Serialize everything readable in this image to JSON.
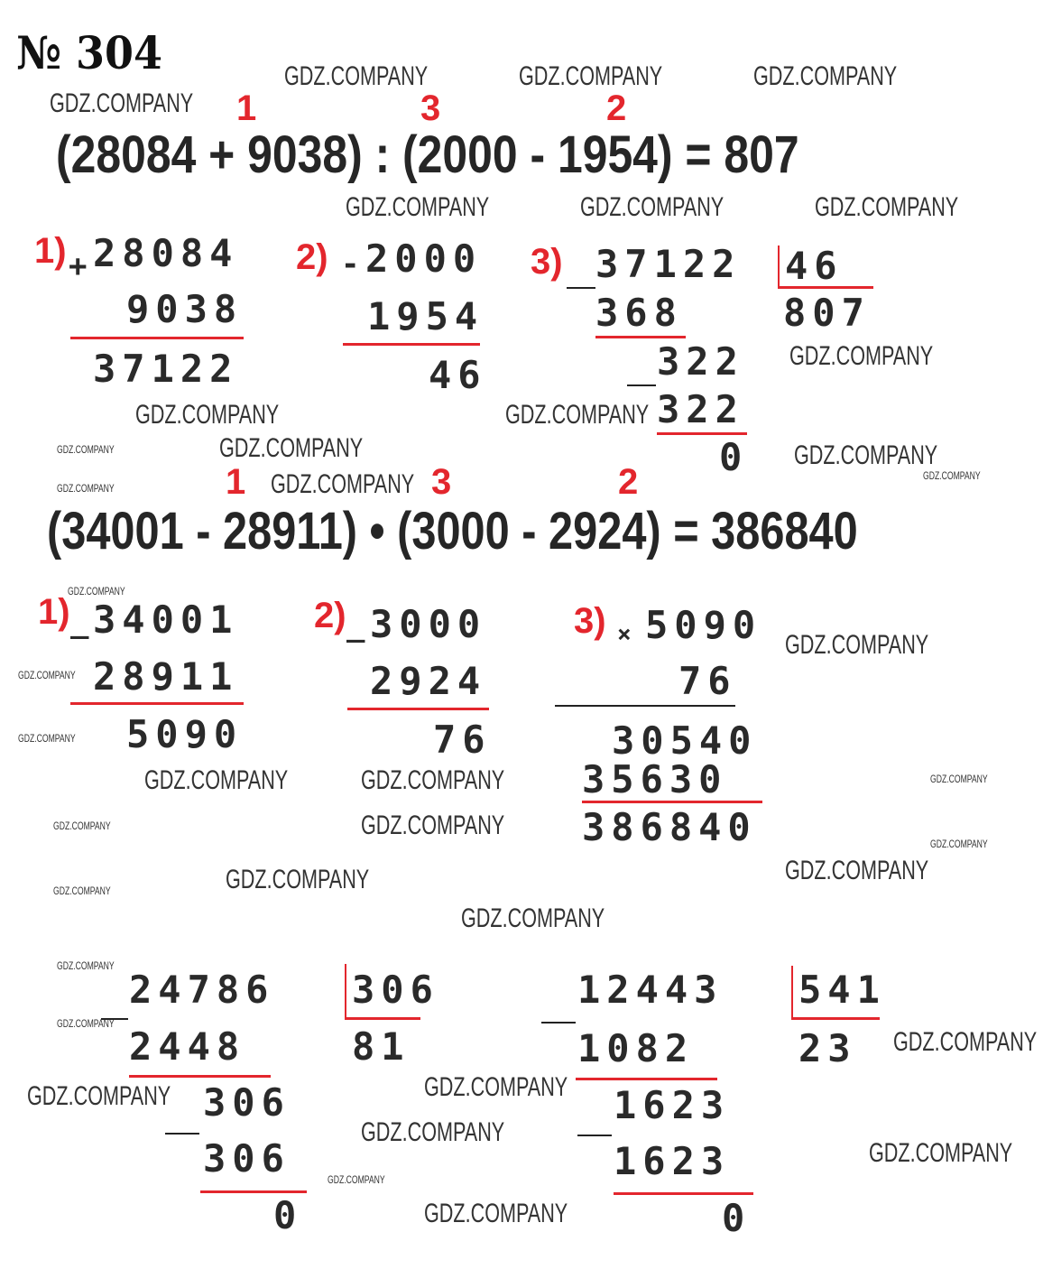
{
  "title": "№ 304",
  "colors": {
    "accent": "#e3262d",
    "text": "#222222"
  },
  "watermark_text": "GDZ.COMPANY",
  "problem1": {
    "expression": "(28084 + 9038) : (2000 - 1954) = 807",
    "order": [
      "1",
      "3",
      "2"
    ],
    "step1": {
      "label": "1)",
      "op": "+",
      "a": "28084",
      "b": "9038",
      "result": "37122"
    },
    "step2": {
      "label": "2)",
      "op": "-",
      "a": "2000",
      "b": "1954",
      "result": "46"
    },
    "step3": {
      "label": "3)",
      "op": "_",
      "dividend": "37122",
      "divisor": "46",
      "quotient": "807",
      "rows": [
        "368",
        "322",
        "322",
        "0"
      ]
    }
  },
  "problem2": {
    "expression": "(34001 - 28911) • (3000 - 2924) = 386840",
    "order": [
      "1",
      "3",
      "2"
    ],
    "step1": {
      "label": "1)",
      "op": "_",
      "a": "34001",
      "b": "28911",
      "result": "5090"
    },
    "step2": {
      "label": "2)",
      "op": "_",
      "a": "3000",
      "b": "2924",
      "result": "76"
    },
    "step3": {
      "label": "3)",
      "op": "×",
      "a": "5090",
      "b": "76",
      "partials": [
        "30540",
        "35630"
      ],
      "result": "386840"
    }
  },
  "division1": {
    "dividend": "24786",
    "divisor": "306",
    "quotient": "81",
    "rows": [
      "2448",
      "306",
      "306",
      "0"
    ]
  },
  "division2": {
    "dividend": "12443",
    "divisor": "541",
    "quotient": "23",
    "rows": [
      "1082",
      "1623",
      "1623",
      "0"
    ]
  }
}
